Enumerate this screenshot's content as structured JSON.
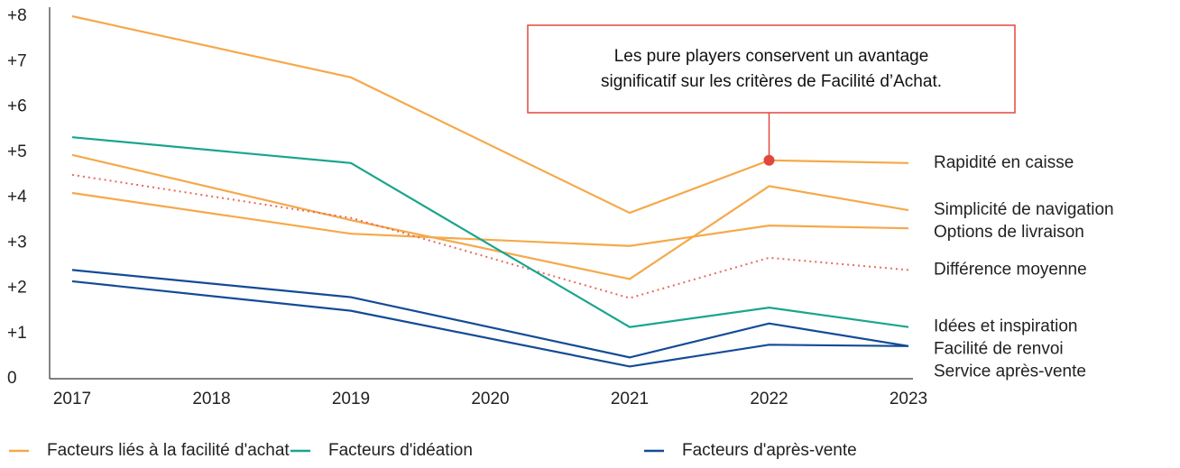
{
  "chart_data": {
    "type": "line",
    "x": [
      2017,
      2019,
      2021,
      2022,
      2023
    ],
    "xlim": [
      2017,
      2023
    ],
    "xticks": [
      2017,
      2018,
      2019,
      2020,
      2021,
      2022,
      2023
    ],
    "ylim": [
      0,
      8
    ],
    "yticks": [
      0,
      {
        "value": 1,
        "label": "+1"
      },
      {
        "value": 2,
        "label": "+2"
      },
      {
        "value": 3,
        "label": "+3"
      },
      {
        "value": 4,
        "label": "+4"
      },
      {
        "value": 5,
        "label": "+5"
      },
      {
        "value": 6,
        "label": "+6"
      },
      {
        "value": 7,
        "label": "+7"
      },
      {
        "value": 8,
        "label": "+8"
      }
    ],
    "series": [
      {
        "name": "Rapidité en caisse",
        "color": "#f5a94a",
        "values": [
          8.0,
          6.65,
          3.66,
          4.82,
          4.76
        ]
      },
      {
        "name": "Simplicité de navigation",
        "color": "#f5a94a",
        "values": [
          4.94,
          3.5,
          2.2,
          4.25,
          3.72
        ]
      },
      {
        "name": "Options de livraison",
        "color": "#f5a94a",
        "values": [
          4.1,
          3.2,
          2.93,
          3.38,
          3.32
        ]
      },
      {
        "name": "Différence moyenne",
        "color": "#e86a5a",
        "dotted": true,
        "values": [
          4.5,
          3.55,
          1.78,
          2.67,
          2.4
        ]
      },
      {
        "name": "Idées et inspiration",
        "color": "#1aa58e",
        "values": [
          5.33,
          4.76,
          1.14,
          1.57,
          1.14
        ]
      },
      {
        "name": "Facilité de renvoi",
        "color": "#134b96",
        "values": [
          2.4,
          1.8,
          0.47,
          1.22,
          0.72
        ]
      },
      {
        "name": "Service après-vente",
        "color": "#134b96",
        "values": [
          2.15,
          1.5,
          0.27,
          0.75,
          0.72
        ]
      }
    ],
    "legend": [
      {
        "name": "Facteurs liés à la facilité d'achat",
        "color": "#f5a94a"
      },
      {
        "name": "Facteurs d'idéation",
        "color": "#1aa58e"
      },
      {
        "name": "Facteurs d'après-vente",
        "color": "#134b96"
      }
    ],
    "annotation": [
      "Les pure players conservent un avantage",
      "significatif sur les critères de Facilité d’Achat."
    ],
    "annotation_color": "#e0483e"
  }
}
